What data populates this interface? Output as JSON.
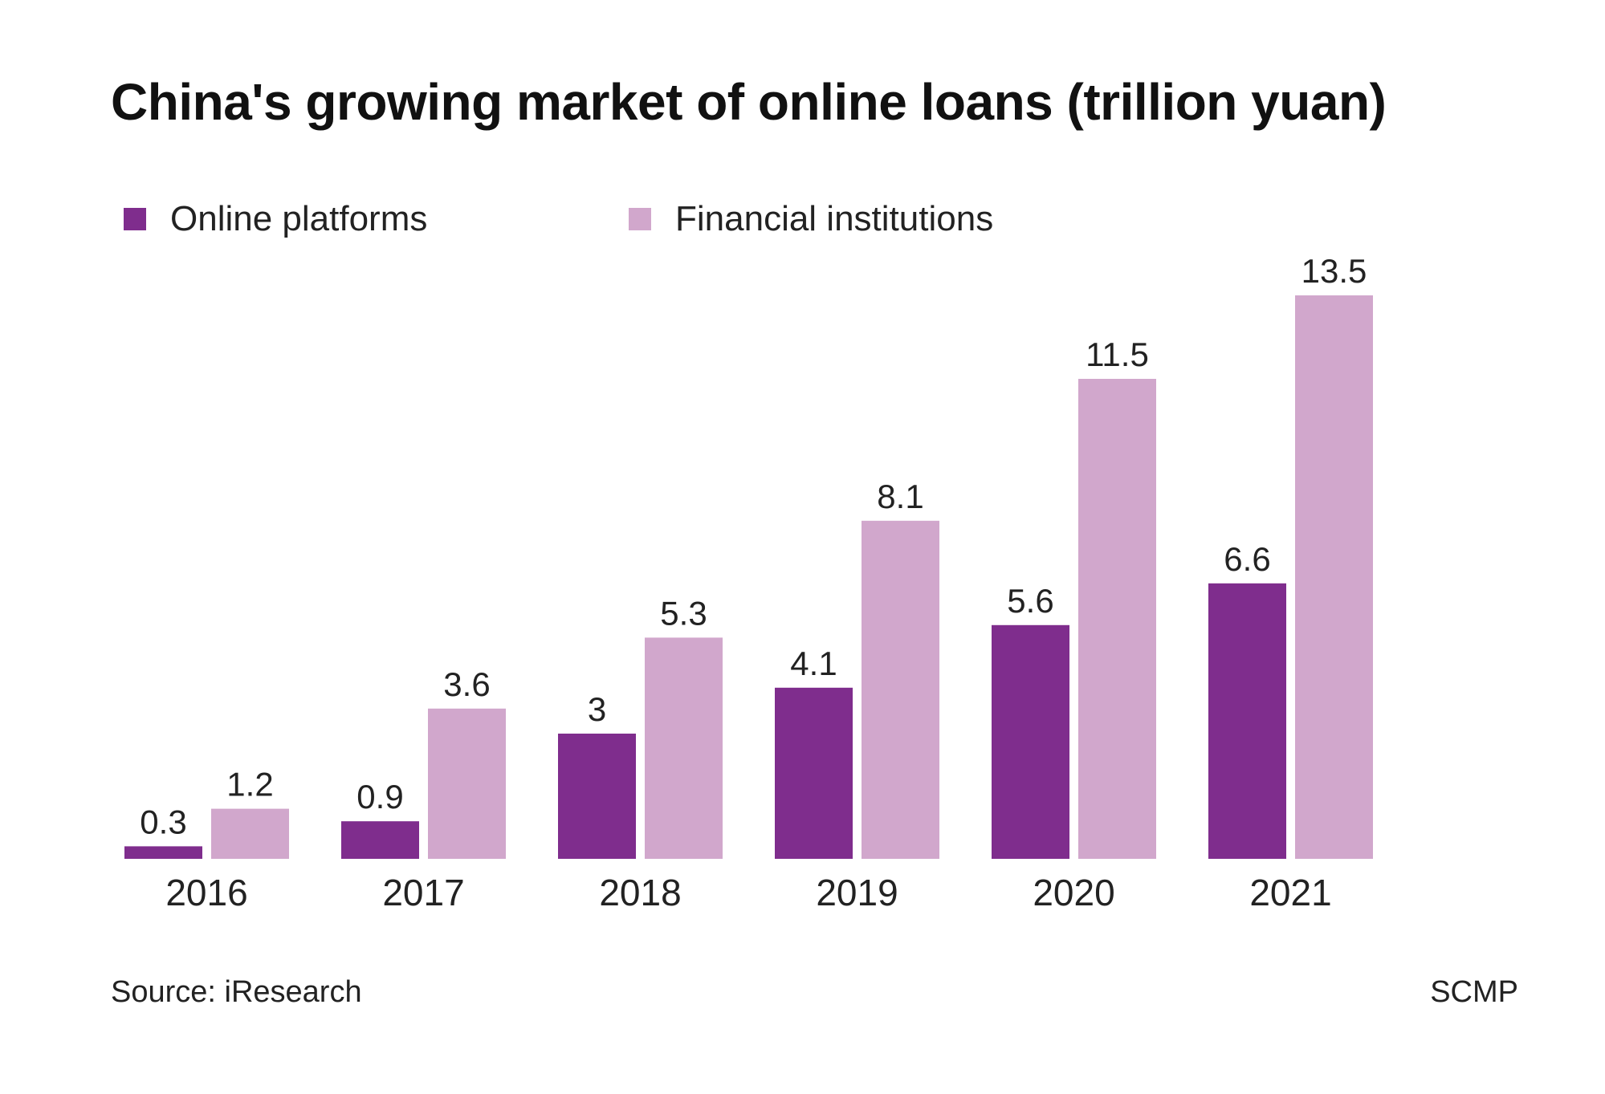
{
  "chart_data": {
    "type": "bar",
    "title": "China's growing market of online loans (trillion yuan)",
    "categories": [
      "2016",
      "2017",
      "2018",
      "2019",
      "2020",
      "2021"
    ],
    "series": [
      {
        "name": "Online platforms",
        "color": "#7f2d8d",
        "values": [
          0.3,
          0.9,
          3,
          4.1,
          5.6,
          6.6
        ]
      },
      {
        "name": "Financial institutions",
        "color": "#d1a7cc",
        "values": [
          1.2,
          3.6,
          5.3,
          8.1,
          11.5,
          13.5
        ]
      }
    ],
    "xlabel": "",
    "ylabel": "",
    "ylim": [
      0,
      13.5
    ],
    "grid": false,
    "legend": "top-left",
    "data_labels": true
  },
  "footer": {
    "source": "Source: iResearch",
    "credit": "SCMP"
  }
}
